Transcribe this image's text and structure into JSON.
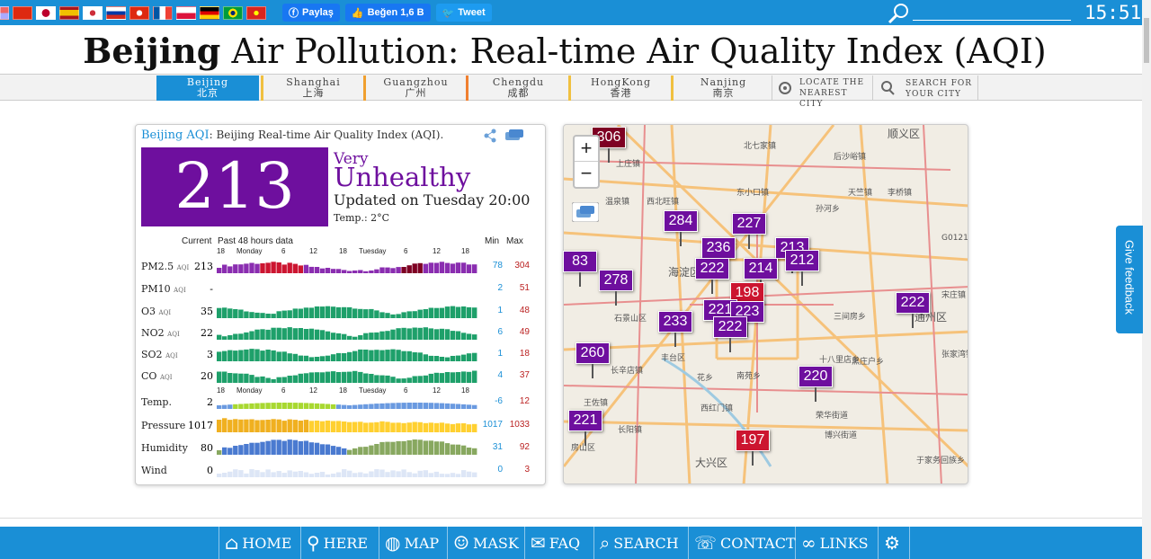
{
  "top": {
    "share_label": "Paylaş",
    "like_label": "Beğen 1,6 B",
    "tweet_label": "Tweet",
    "clock": "15:51"
  },
  "title": {
    "city": "Beijing",
    "rest": "Air Pollution: Real-time Air Quality Index (AQI)"
  },
  "nav": [
    {
      "en": "Beijing",
      "cn": "北京"
    },
    {
      "en": "Shanghai",
      "cn": "上海"
    },
    {
      "en": "Guangzhou",
      "cn": "广州"
    },
    {
      "en": "Chengdu",
      "cn": "成都"
    },
    {
      "en": "HongKong",
      "cn": "香港"
    },
    {
      "en": "Nanjing",
      "cn": "南京"
    },
    {
      "en": "LOCATE THE",
      "cn": "NEAREST CITY"
    },
    {
      "en": "SEARCH FOR",
      "cn": "YOUR CITY"
    }
  ],
  "panel": {
    "city_link": "Beijing AQI",
    "subtitle": ": Beijing Real-time Air Quality Index (AQI).",
    "aqi": "213",
    "level_line1": "Very",
    "level_line2": "Unhealthy",
    "updated": "Updated on Tuesday 20:00",
    "temp": "Temp.: 2°C",
    "col_current": "Current",
    "col_past": "Past 48 hours data",
    "col_min": "Min",
    "col_max": "Max",
    "axis": [
      "18",
      "Monday",
      "6",
      "12",
      "18",
      "Tuesday",
      "6",
      "12",
      "18"
    ],
    "aqi_tag": "AQI",
    "rows": [
      {
        "name": "PM2.5",
        "aqi": true,
        "cur": "213",
        "min": "78",
        "max": "304"
      },
      {
        "name": "PM10",
        "aqi": true,
        "cur": "-",
        "min": "2",
        "max": "51"
      },
      {
        "name": "O3",
        "aqi": true,
        "cur": "35",
        "min": "1",
        "max": "48"
      },
      {
        "name": "NO2",
        "aqi": true,
        "cur": "22",
        "min": "6",
        "max": "49"
      },
      {
        "name": "SO2",
        "aqi": true,
        "cur": "3",
        "min": "1",
        "max": "18"
      },
      {
        "name": "CO",
        "aqi": true,
        "cur": "20",
        "min": "4",
        "max": "37"
      },
      {
        "name": "Temp.",
        "aqi": false,
        "cur": "2",
        "min": "-6",
        "max": "12"
      },
      {
        "name": "Pressure",
        "aqi": false,
        "cur": "1017",
        "min": "1017",
        "max": "1033"
      },
      {
        "name": "Humidity",
        "aqi": false,
        "cur": "80",
        "min": "31",
        "max": "92"
      },
      {
        "name": "Wind",
        "aqi": false,
        "cur": "0",
        "min": "0",
        "max": "3"
      }
    ]
  },
  "map": {
    "markers": [
      "306",
      "284",
      "227",
      "236",
      "213",
      "222",
      "214",
      "212",
      "83",
      "278",
      "198",
      "222",
      "221",
      "223",
      "233",
      "222",
      "260",
      "220",
      "221",
      "197"
    ],
    "labels": [
      "顺义区",
      "北七家镇",
      "后沙峪镇",
      "上庄镇",
      "天竺镇",
      "李桥镇",
      "东小口镇",
      "孙河乡",
      "西北旺镇",
      "温泉镇",
      "海淀区",
      "石景山区",
      "丰台区",
      "通州区",
      "宋庄镇",
      "长辛店镇",
      "南苑乡",
      "花乡",
      "王佐镇",
      "长阳镇",
      "房山区",
      "西红门镇",
      "大兴区",
      "荣华街道",
      "博兴街道",
      "于家务回族乡",
      "张家湾镇",
      "黑庄户乡",
      "三间房乡",
      "十八里店乡",
      "G0121"
    ],
    "zoom_in": "+",
    "zoom_out": "−"
  },
  "feedback": "Give feedback",
  "footer": [
    {
      "label": "HOME",
      "icon": "home-icon"
    },
    {
      "label": "HERE",
      "icon": "pin-icon"
    },
    {
      "label": "MAP",
      "icon": "globe-icon"
    },
    {
      "label": "MASK",
      "icon": "mask-icon"
    },
    {
      "label": "FAQ",
      "icon": "chat-icon"
    },
    {
      "label": "SEARCH",
      "icon": "search-icon"
    },
    {
      "label": "CONTACT",
      "icon": "contact-icon"
    },
    {
      "label": "LINKS",
      "icon": "link-icon"
    },
    {
      "label": "",
      "icon": "gear-icon"
    }
  ]
}
